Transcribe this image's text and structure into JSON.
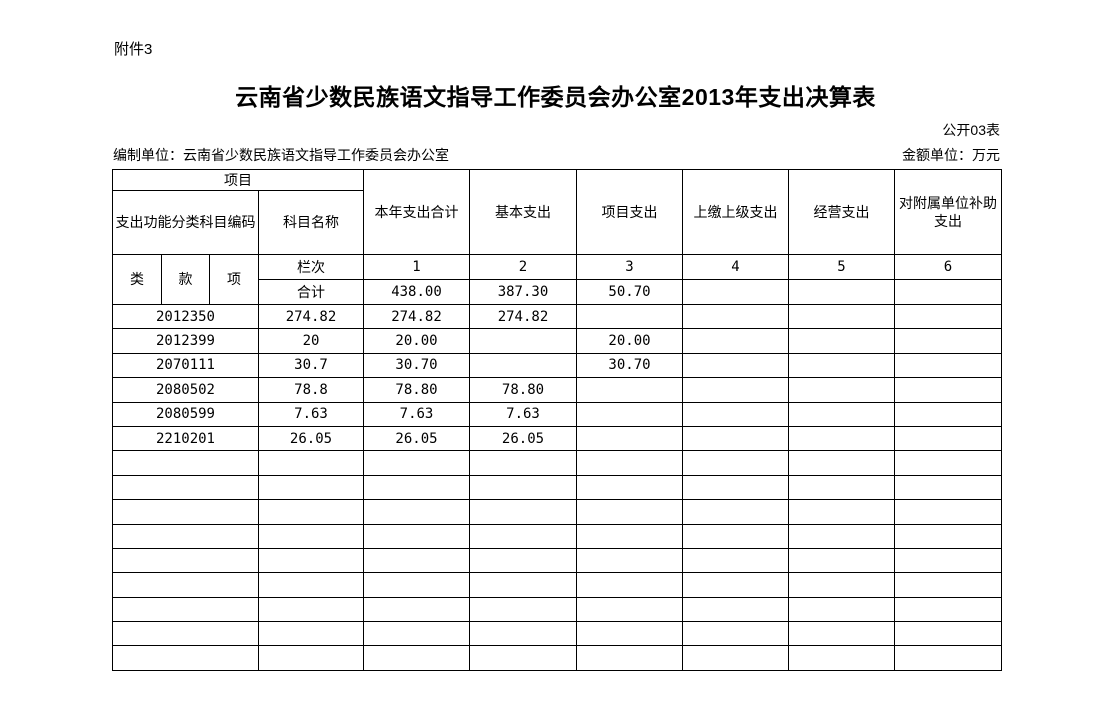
{
  "page": {
    "attachment_label": "附件3",
    "title": "云南省少数民族语文指导工作委员会办公室2013年支出决算表",
    "doc_code": "公开03表",
    "prepared_by": "编制单位：云南省少数民族语文指导工作委员会办公室",
    "amount_unit": "金额单位：万元"
  },
  "table": {
    "headers": {
      "project": "项目",
      "func_code": "支出功能分类科目编码",
      "subject_name": "科目名称",
      "cols": [
        "本年支出合计",
        "基本支出",
        "项目支出",
        "上缴上级支出",
        "经营支出",
        "对附属单位补助支出"
      ],
      "cls": "类",
      "kuan": "款",
      "xiang": "项",
      "lanci": "栏次",
      "col_nums": [
        "1",
        "2",
        "3",
        "4",
        "5",
        "6"
      ]
    },
    "total_row": {
      "label": "合计",
      "values": [
        "438.00",
        "387.30",
        "50.70",
        "",
        "",
        ""
      ]
    },
    "rows": [
      {
        "code": "2012350",
        "name": "274.82",
        "values": [
          "274.82",
          "274.82",
          "",
          "",
          "",
          ""
        ]
      },
      {
        "code": "2012399",
        "name": "20",
        "values": [
          "20.00",
          "",
          "20.00",
          "",
          "",
          ""
        ]
      },
      {
        "code": "2070111",
        "name": "30.7",
        "values": [
          "30.70",
          "",
          "30.70",
          "",
          "",
          ""
        ]
      },
      {
        "code": "2080502",
        "name": "78.8",
        "values": [
          "78.80",
          "78.80",
          "",
          "",
          "",
          ""
        ]
      },
      {
        "code": "2080599",
        "name": "7.63",
        "values": [
          "7.63",
          "7.63",
          "",
          "",
          "",
          ""
        ]
      },
      {
        "code": "2210201",
        "name": "26.05",
        "values": [
          "26.05",
          "26.05",
          "",
          "",
          "",
          ""
        ]
      }
    ],
    "empty_row_count": 9
  }
}
